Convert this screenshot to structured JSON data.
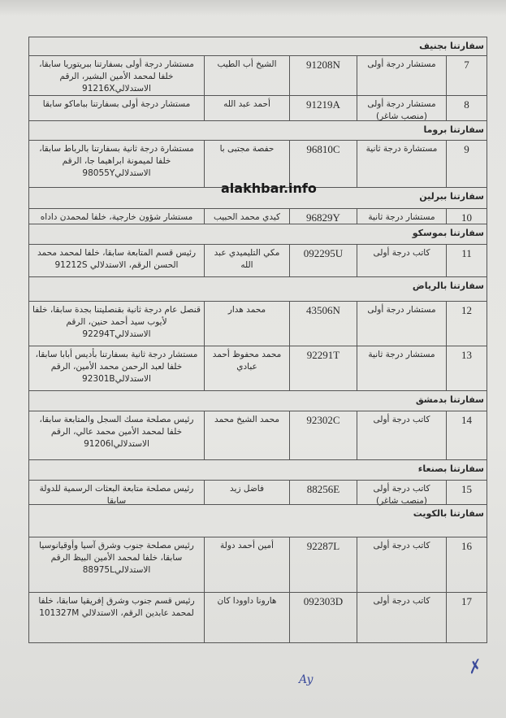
{
  "watermark": "alakhbar.info",
  "sections": [
    {
      "title": "سفارتنا بجنيف",
      "rows": [
        {
          "num": "7",
          "rank": "مستشار درجة أولى",
          "code": "91208N",
          "name": "الشيخ أب الطيب",
          "note": "مستشار درجة أولى بسفارتنا ببريتوريا سابقا، خلفا لمحمد الأمين البشير، الرقم الاستدلالي91216X"
        },
        {
          "num": "8",
          "rank": "مستشار درجة أولى (منصب شاغر)",
          "code": "91219A",
          "name": "أحمد عبد الله",
          "note": "مستشار درجة أولى بسفارتنا بباماكو سابقا"
        }
      ]
    },
    {
      "title": "سفارتنا بروما",
      "rows": [
        {
          "num": "9",
          "rank": "مستشارة درجة ثانية",
          "code": "96810C",
          "name": "حفصة مجتبى با",
          "note": "مستشارة درجة ثانية بسفارتنا بالرباط سابقا، خلفا لميمونة ابراهيما جا، الرقم الاستدلالي98055Y"
        }
      ]
    },
    {
      "title": "سفارتنا ببرلين",
      "rows": [
        {
          "num": "10",
          "rank": "مستشار درجة ثانية",
          "code": "96829Y",
          "name": "كيدي محمد الحبيب",
          "note": "مستشار شؤون خارجية، خلفا لمحمدن داداه"
        }
      ]
    },
    {
      "title": "سفارتنا بموسكو",
      "rows": [
        {
          "num": "11",
          "rank": "كاتب درجة أولى",
          "code": "092295U",
          "name": "مكي التليميدي عبد الله",
          "note": "رئيس قسم المتابعة سابقا، خلفا لمحمد محمد الحسن الرقم، الاستدلالي 91212S"
        }
      ]
    },
    {
      "title": "سفارتنا بالرياض",
      "rows": [
        {
          "num": "12",
          "rank": "مستشار درجة أولى",
          "code": "43506N",
          "name": "محمد هدار",
          "note": "قنصل عام درجة ثانية بقنصليتنا بجدة سابقا، خلفا لأيوب سيد أحمد حنين، الرقم الاستدلالي92294T"
        },
        {
          "num": "13",
          "rank": "مستشار درجة ثانية",
          "code": "92291T",
          "name": "محمد محفوظ أحمد عبادي",
          "note": "مستشار درجة ثانية بسفارتنا بأديس أبابا سابقا، خلفا لعبد الرحمن محمد الأمين، الرقم الاستدلالي92301B"
        }
      ]
    },
    {
      "title": "سفارتنا بدمشق",
      "rows": [
        {
          "num": "14",
          "rank": "كاتب درجة أولى",
          "code": "92302C",
          "name": "محمد الشيخ محمد",
          "note": "رئيس مصلحة مسك السجل والمتابعة سابقا، خلفا لمحمد الأمين محمد عالي، الرقم الاستدلالي91206I"
        }
      ]
    },
    {
      "title": "سفارتنا بصنعاء",
      "rows": [
        {
          "num": "15",
          "rank": "كاتب درجة أولى (منصب شاغر)",
          "code": "88256E",
          "name": "فاضل زيد",
          "note": "رئيس مصلحة متابعة البعثات الرسمية للدولة سابقا"
        }
      ]
    },
    {
      "title": "سفارتنا بالكويت",
      "rows": [
        {
          "num": "16",
          "rank": "كاتب درجة أولى",
          "code": "92287L",
          "name": "أمين أحمد دولة",
          "note": "رئيس مصلحة جنوب وشرق آسيا وأوقيانوسيا سابقا، خلفا لمحمد الأمين البيظ الرقم الاستدلالي88975L"
        },
        {
          "num": "17",
          "rank": "كاتب درجة أولى",
          "code": "092303D",
          "name": "هارونا داوودا كان",
          "note": "رئيس قسم جنوب وشرق إفريقيا سابقا، خلفا لمحمد عابدين الرقم، الاستدلالي 101327M"
        }
      ]
    }
  ]
}
